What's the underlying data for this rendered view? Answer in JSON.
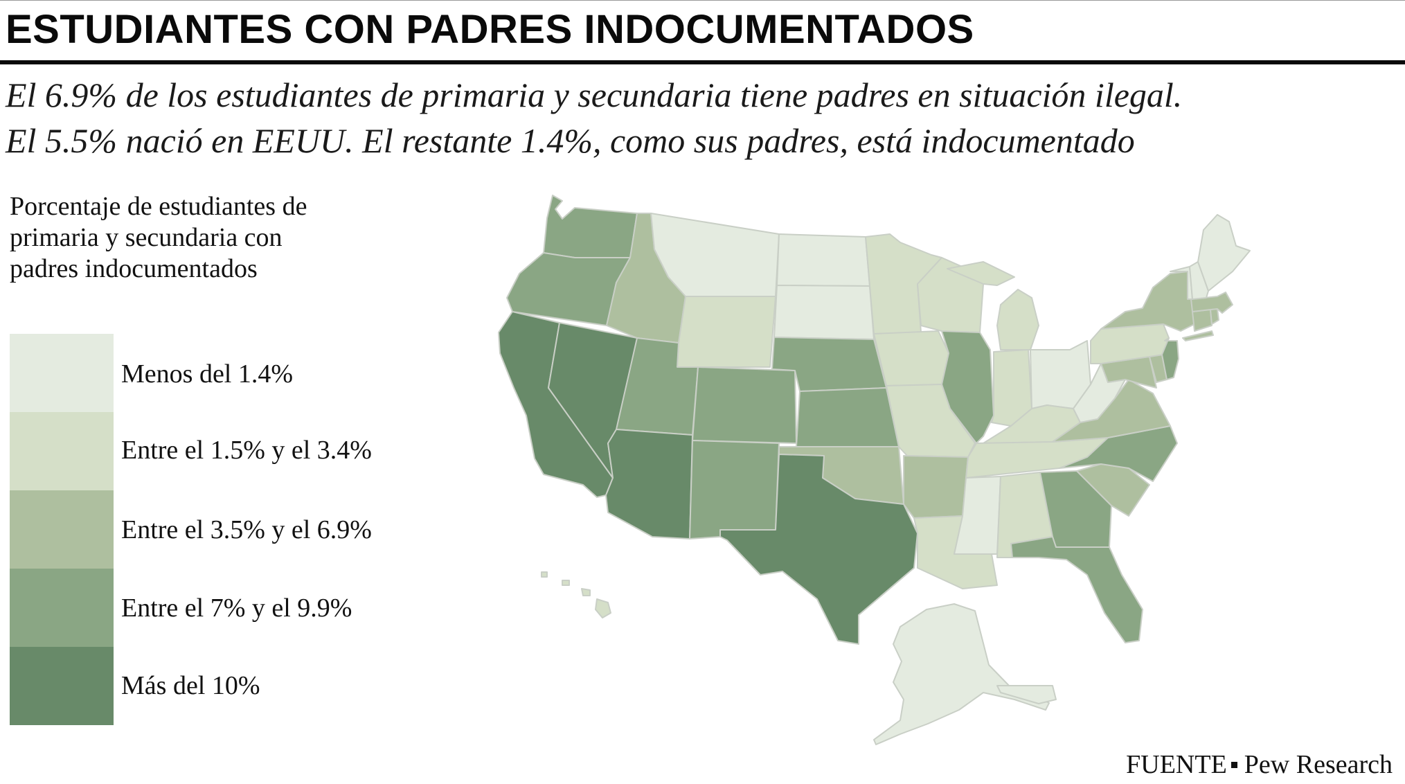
{
  "title": "ESTUDIANTES CON PADRES INDOCUMENTADOS",
  "subtitle": {
    "line1": "El 6.9% de los estudiantes de primaria y secundaria tiene padres en situación ilegal.",
    "line2": "El 5.5% nació en EEUU. El restante 1.4%, como sus padres, está indocumentado"
  },
  "legend": {
    "title": "Porcentaje de estudiantes de primaria y secundaria con padres indocumentados",
    "items": [
      {
        "label": "Menos del 1.4%",
        "color": "#e4ebe0"
      },
      {
        "label": "Entre el 1.5% y el 3.4%",
        "color": "#d5dfc8"
      },
      {
        "label": "Entre el 3.5% y el 6.9%",
        "color": "#aebf9f"
      },
      {
        "label": "Entre el 7% y el 9.9%",
        "color": "#8aa684"
      },
      {
        "label": "Más del 10%",
        "color": "#688a69"
      }
    ]
  },
  "map": {
    "states": [
      {
        "name": "Washington",
        "category": 3
      },
      {
        "name": "Oregon",
        "category": 3
      },
      {
        "name": "California",
        "category": 4
      },
      {
        "name": "Nevada",
        "category": 4
      },
      {
        "name": "Idaho",
        "category": 2
      },
      {
        "name": "Montana",
        "category": 0
      },
      {
        "name": "Wyoming",
        "category": 1
      },
      {
        "name": "Utah",
        "category": 3
      },
      {
        "name": "Arizona",
        "category": 4
      },
      {
        "name": "Colorado",
        "category": 3
      },
      {
        "name": "New Mexico",
        "category": 3
      },
      {
        "name": "North Dakota",
        "category": 0
      },
      {
        "name": "South Dakota",
        "category": 0
      },
      {
        "name": "Nebraska",
        "category": 3
      },
      {
        "name": "Kansas",
        "category": 3
      },
      {
        "name": "Oklahoma",
        "category": 2
      },
      {
        "name": "Texas",
        "category": 4
      },
      {
        "name": "Minnesota",
        "category": 1
      },
      {
        "name": "Iowa",
        "category": 1
      },
      {
        "name": "Missouri",
        "category": 1
      },
      {
        "name": "Arkansas",
        "category": 2
      },
      {
        "name": "Louisiana",
        "category": 1
      },
      {
        "name": "Wisconsin",
        "category": 1
      },
      {
        "name": "Illinois",
        "category": 3
      },
      {
        "name": "Michigan",
        "category": 1
      },
      {
        "name": "Indiana",
        "category": 1
      },
      {
        "name": "Ohio",
        "category": 0
      },
      {
        "name": "Kentucky",
        "category": 1
      },
      {
        "name": "Tennessee",
        "category": 1
      },
      {
        "name": "Mississippi",
        "category": 0
      },
      {
        "name": "Alabama",
        "category": 1
      },
      {
        "name": "Georgia",
        "category": 3
      },
      {
        "name": "Florida",
        "category": 3
      },
      {
        "name": "South Carolina",
        "category": 2
      },
      {
        "name": "North Carolina",
        "category": 3
      },
      {
        "name": "Virginia",
        "category": 2
      },
      {
        "name": "West Virginia",
        "category": 0
      },
      {
        "name": "Maryland",
        "category": 2
      },
      {
        "name": "Delaware",
        "category": 2
      },
      {
        "name": "Pennsylvania",
        "category": 1
      },
      {
        "name": "New Jersey",
        "category": 3
      },
      {
        "name": "New York",
        "category": 2
      },
      {
        "name": "Connecticut",
        "category": 2
      },
      {
        "name": "Rhode Island",
        "category": 2
      },
      {
        "name": "Massachusetts",
        "category": 2
      },
      {
        "name": "Vermont",
        "category": 0
      },
      {
        "name": "New Hampshire",
        "category": 0
      },
      {
        "name": "Maine",
        "category": 0
      },
      {
        "name": "Alaska",
        "category": 0
      },
      {
        "name": "Hawaii",
        "category": 1
      }
    ]
  },
  "source": {
    "label": "FUENTE",
    "value": "Pew Research"
  }
}
